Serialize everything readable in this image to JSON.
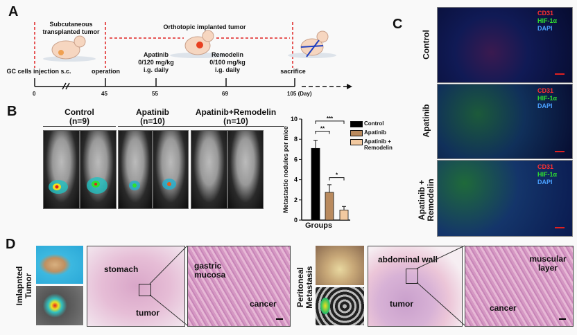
{
  "panels": {
    "a": "A",
    "b": "B",
    "c": "C",
    "d": "D"
  },
  "timeline": {
    "phase1": "Subcutaneous transplanted tumor",
    "phase2": "Orthotopic implanted tumor",
    "events": {
      "injection": "GC cells injection s.c.",
      "operation": "operation",
      "apatinib": "Apatinib",
      "apatinib_dose": "0/120 mg/kg",
      "apatinib_route": "i.g. daily",
      "remodelin": "Remodelin",
      "remodelin_dose": "0/100 mg/kg",
      "remodelin_route": "i.g. daily",
      "sacrifice": "sacrifice"
    },
    "ticks": [
      "0",
      "45",
      "55",
      "69",
      "105 (Day)"
    ],
    "accent": "#e02020"
  },
  "imaging_groups": [
    {
      "name": "Control",
      "n": "(n=9)"
    },
    {
      "name": "Apatinib",
      "n": "(n=10)"
    },
    {
      "name": "Apatinib+Remodelin",
      "n": "(n=10)"
    }
  ],
  "chart_data": {
    "type": "bar",
    "categories": [
      "Control",
      "Apatinib",
      "Apatinib + Remodelin"
    ],
    "values": [
      7.1,
      2.75,
      1.0
    ],
    "errors": [
      0.8,
      0.75,
      0.35
    ],
    "colors": [
      "#000000",
      "#b98a5e",
      "#f2c9a0"
    ],
    "xlabel": "Groups",
    "ylabel": "Metastastic nodules per mice",
    "ylim": [
      0,
      10
    ],
    "yticks": [
      "0",
      "2",
      "4",
      "6",
      "8",
      "10"
    ],
    "legend": [
      "Control",
      "Apatinib",
      "Apatinib + Remodelin"
    ],
    "legend_position": "right",
    "significance": [
      {
        "pair": "Control vs Apatinib+Remodelin",
        "label": "***"
      },
      {
        "pair": "Control vs Apatinib",
        "label": "**"
      },
      {
        "pair": "Apatinib vs Apatinib+Remodelin",
        "label": "*"
      }
    ]
  },
  "fluorescence": {
    "rows": [
      "Control",
      "Apatinib",
      "Apatinib + Remodelin"
    ],
    "markers": [
      {
        "label": "CD31",
        "color": "#ff3030"
      },
      {
        "label": "HIF-1α",
        "color": "#30e030"
      },
      {
        "label": "DAPI",
        "color": "#4aa0ff"
      }
    ]
  },
  "histology": {
    "left_label": "Imlapnted Tumor",
    "stomach": "stomach",
    "tumor": "tumor",
    "gastric_mucosa": "gastric mucosa",
    "cancer": "cancer",
    "right_label": "Peritoneal Metastasis",
    "abdominal_wall": "abdominal wall",
    "tumor2": "tumor",
    "muscular_layer": "muscular layer",
    "cancer2": "cancer"
  }
}
